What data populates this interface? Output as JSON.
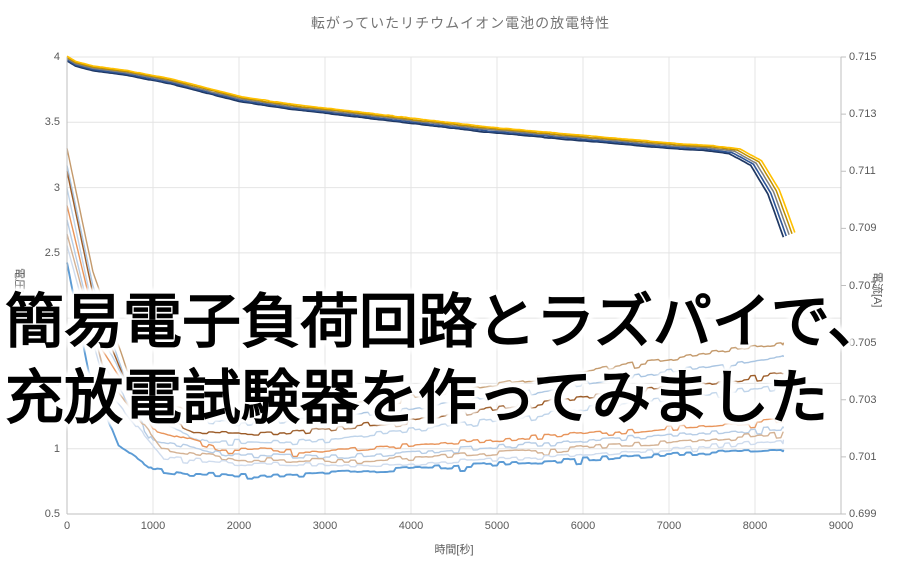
{
  "title": "転がっていたリチウムイオン電池の放電特性",
  "overlay": {
    "line1": "簡易電子負荷回路とラズパイで、",
    "line2": "充放電試験器を作ってみました"
  },
  "style": {
    "grid_color": "#e4e4e4",
    "axis_color": "#bfbfbf",
    "tick_text_color": "#595959",
    "title_color": "#737373",
    "overlay_text_color": "#000000",
    "background": "#ffffff"
  },
  "chart_data": {
    "type": "line",
    "title": "転がっていたリチウムイオン電池の放電特性",
    "xlabel": "時間[秒]",
    "ylabel_left": "電圧[V]",
    "ylabel_right": "電流[A]",
    "x_range": [
      0,
      9000
    ],
    "y_left_range": [
      0.5,
      4
    ],
    "y_right_range": [
      0.699,
      0.715
    ],
    "x_tick_labels": [
      "0",
      "1000",
      "2000",
      "3000",
      "4000",
      "5000",
      "6000",
      "7000",
      "8000",
      "9000"
    ],
    "y_left_tick_labels": [
      "4",
      "3.5",
      "3",
      "2.5",
      "2",
      "1.5",
      "1",
      "0.5"
    ],
    "y_right_tick_labels": [
      "0.715",
      "0.713",
      "0.711",
      "0.709",
      "0.707",
      "0.705",
      "0.703",
      "0.701",
      "0.699"
    ],
    "grid": true,
    "legend": "none",
    "voltage_points": [
      [
        0,
        3.97
      ],
      [
        100,
        3.93
      ],
      [
        300,
        3.895
      ],
      [
        700,
        3.86
      ],
      [
        1200,
        3.795
      ],
      [
        2000,
        3.66
      ],
      [
        2600,
        3.6
      ],
      [
        3200,
        3.555
      ],
      [
        3900,
        3.5
      ],
      [
        4800,
        3.43
      ],
      [
        5800,
        3.37
      ],
      [
        6500,
        3.33
      ],
      [
        7000,
        3.3
      ],
      [
        7400,
        3.285
      ],
      [
        7700,
        3.26
      ],
      [
        7950,
        3.17
      ],
      [
        8150,
        2.95
      ],
      [
        8260,
        2.75
      ],
      [
        8330,
        2.62
      ]
    ],
    "series": [
      {
        "name": "voltage-run-1",
        "axis": "left",
        "color": "#1f3864",
        "width": 1.7,
        "noise": 0.0012,
        "offset": 0,
        "tscale": 1.0,
        "points_ref": "voltage_points"
      },
      {
        "name": "voltage-run-2",
        "axis": "left",
        "color": "#2e5596",
        "width": 1.6,
        "noise": 0.0012,
        "offset": 0.009,
        "tscale": 1.004,
        "points_ref": "voltage_points"
      },
      {
        "name": "voltage-run-3",
        "axis": "left",
        "color": "#7f7f7f",
        "width": 1.5,
        "noise": 0.0012,
        "offset": 0.018,
        "tscale": 1.008,
        "points_ref": "voltage_points"
      },
      {
        "name": "voltage-run-4",
        "axis": "left",
        "color": "#bf8f00",
        "width": 1.5,
        "noise": 0.0012,
        "offset": 0.027,
        "tscale": 1.012,
        "points_ref": "voltage_points"
      },
      {
        "name": "voltage-run-5",
        "axis": "left",
        "color": "#ffc000",
        "width": 1.6,
        "noise": 0.0012,
        "offset": 0.036,
        "tscale": 1.016,
        "points_ref": "voltage_points"
      },
      {
        "name": "current-run-1",
        "axis": "right",
        "color": "#c49a6c",
        "width": 1.4,
        "noise": 8e-05,
        "offset": 0,
        "tscale": 1,
        "points": [
          [
            0,
            0.7118
          ],
          [
            300,
            0.7075
          ],
          [
            700,
            0.704
          ],
          [
            1200,
            0.70285
          ],
          [
            1800,
            0.7025
          ],
          [
            3000,
            0.7027
          ],
          [
            4500,
            0.7033
          ],
          [
            6000,
            0.704
          ],
          [
            7500,
            0.70465
          ],
          [
            8330,
            0.705
          ]
        ]
      },
      {
        "name": "current-run-2",
        "axis": "right",
        "color": "#a9c5e2",
        "width": 1.4,
        "noise": 8e-05,
        "offset": 0,
        "tscale": 1,
        "points": [
          [
            0,
            0.7112
          ],
          [
            300,
            0.707
          ],
          [
            700,
            0.7035
          ],
          [
            1300,
            0.7023
          ],
          [
            2000,
            0.70215
          ],
          [
            3500,
            0.7025
          ],
          [
            5000,
            0.7031
          ],
          [
            6500,
            0.7038
          ],
          [
            8330,
            0.7045
          ]
        ]
      },
      {
        "name": "current-run-3",
        "axis": "right",
        "color": "#9c5c28",
        "width": 1.4,
        "noise": 8e-05,
        "offset": 0,
        "tscale": 1,
        "points": [
          [
            0,
            0.711
          ],
          [
            350,
            0.706
          ],
          [
            800,
            0.7028
          ],
          [
            1500,
            0.70185
          ],
          [
            2500,
            0.7018
          ],
          [
            4000,
            0.7023
          ],
          [
            6000,
            0.7031
          ],
          [
            8330,
            0.7039
          ]
        ]
      },
      {
        "name": "current-run-4",
        "axis": "right",
        "color": "#bfd4ea",
        "width": 1.4,
        "noise": 8e-05,
        "offset": 0,
        "tscale": 1,
        "points": [
          [
            0,
            0.7104
          ],
          [
            350,
            0.7055
          ],
          [
            900,
            0.7024
          ],
          [
            1600,
            0.70155
          ],
          [
            2600,
            0.7015
          ],
          [
            4200,
            0.702
          ],
          [
            6300,
            0.7028
          ],
          [
            8330,
            0.7035
          ]
        ]
      },
      {
        "name": "current-run-5",
        "axis": "right",
        "color": "#e8945a",
        "width": 1.4,
        "noise": 8e-05,
        "offset": 0,
        "tscale": 1,
        "points": [
          [
            0,
            0.7098
          ],
          [
            400,
            0.7048
          ],
          [
            1000,
            0.702
          ],
          [
            1800,
            0.70125
          ],
          [
            3000,
            0.7012
          ],
          [
            5000,
            0.7016
          ],
          [
            7000,
            0.702
          ],
          [
            8330,
            0.7023
          ]
        ]
      },
      {
        "name": "current-run-6",
        "axis": "right",
        "color": "#b7cde6",
        "width": 1.4,
        "noise": 8e-05,
        "offset": 0,
        "tscale": 1,
        "points": [
          [
            0,
            0.7093
          ],
          [
            400,
            0.7043
          ],
          [
            1000,
            0.7016
          ],
          [
            1900,
            0.70105
          ],
          [
            3200,
            0.701
          ],
          [
            5200,
            0.7014
          ],
          [
            7200,
            0.7018
          ],
          [
            8330,
            0.702
          ]
        ]
      },
      {
        "name": "current-run-7",
        "axis": "right",
        "color": "#d4b294",
        "width": 1.4,
        "noise": 8e-05,
        "offset": 0,
        "tscale": 1,
        "points": [
          [
            0,
            0.7088
          ],
          [
            450,
            0.7038
          ],
          [
            1100,
            0.7013
          ],
          [
            2000,
            0.7009
          ],
          [
            3400,
            0.70085
          ],
          [
            5400,
            0.7012
          ],
          [
            7400,
            0.7016
          ],
          [
            8330,
            0.70185
          ]
        ]
      },
      {
        "name": "current-run-8",
        "axis": "right",
        "color": "#cfdcee",
        "width": 1.4,
        "noise": 7e-05,
        "offset": 0,
        "tscale": 1,
        "points": [
          [
            0,
            0.7084
          ],
          [
            450,
            0.7034
          ],
          [
            1100,
            0.701
          ],
          [
            2100,
            0.70075
          ],
          [
            3600,
            0.7007
          ],
          [
            5600,
            0.701
          ],
          [
            7600,
            0.7014
          ],
          [
            8330,
            0.7016
          ]
        ]
      },
      {
        "name": "current-run-9",
        "axis": "right",
        "color": "#5b9bd5",
        "width": 1.9,
        "noise": 7e-05,
        "offset": 0,
        "tscale": 1,
        "points": [
          [
            0,
            0.7078
          ],
          [
            250,
            0.704
          ],
          [
            600,
            0.7014
          ],
          [
            1000,
            0.70055
          ],
          [
            1400,
            0.7004
          ],
          [
            2200,
            0.70035
          ],
          [
            3500,
            0.7005
          ],
          [
            5000,
            0.70075
          ],
          [
            6500,
            0.701
          ],
          [
            8330,
            0.70125
          ]
        ]
      }
    ]
  }
}
